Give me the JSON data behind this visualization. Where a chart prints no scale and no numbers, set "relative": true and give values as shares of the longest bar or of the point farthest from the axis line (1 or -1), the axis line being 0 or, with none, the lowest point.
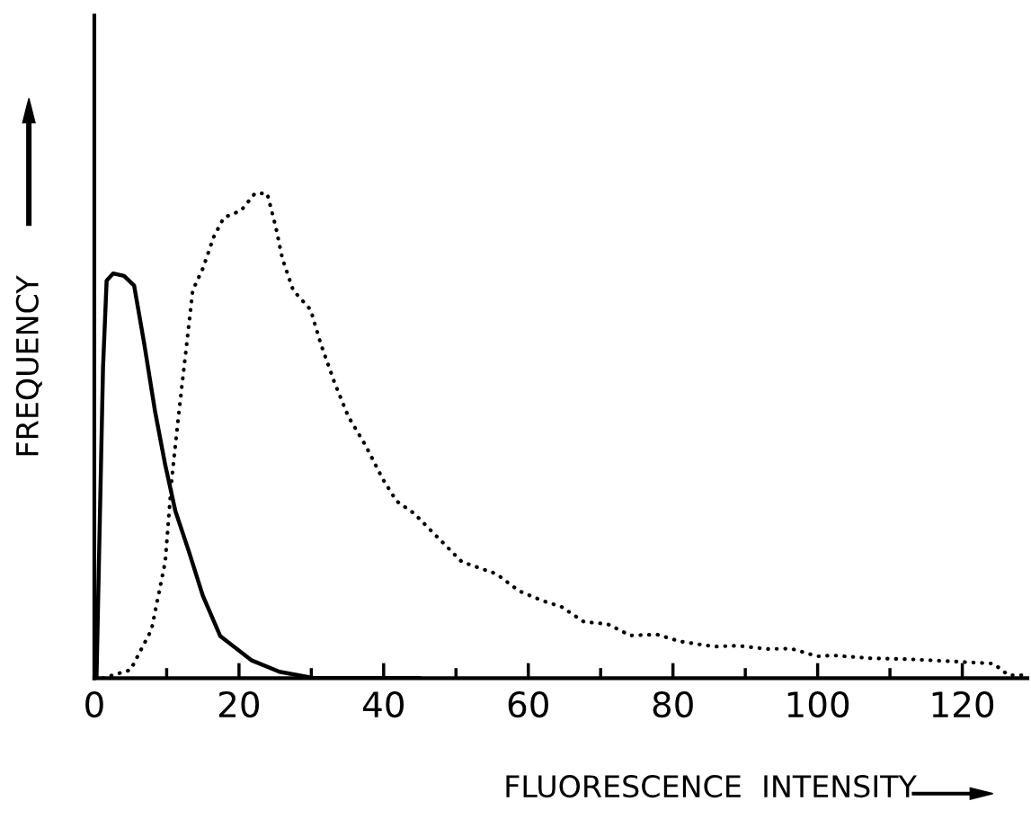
{
  "chart_data": {
    "type": "line",
    "relative": true,
    "xlabel": "FLUORESCENCE  INTENSITY",
    "ylabel": "FREQUENCY",
    "xlim": [
      0,
      129
    ],
    "xticks": [
      0,
      {
        "value": 10,
        "label": null
      },
      20,
      {
        "value": 30,
        "label": null
      },
      40,
      {
        "value": 50,
        "label": null
      },
      60,
      {
        "value": 70,
        "label": null
      },
      80,
      {
        "value": 90,
        "label": null
      },
      100,
      {
        "value": 110,
        "label": null
      },
      120
    ],
    "marker": "none",
    "series": [
      {
        "color": "#000000",
        "line_style": "solid",
        "x": [
          0.3,
          1.2,
          1.7,
          2.6,
          4.1,
          5.5,
          6.9,
          8.4,
          9.8,
          11.2,
          13.1,
          15.0,
          17.4,
          21.7,
          25.6,
          30.3,
          45.0
        ],
        "values": [
          0,
          0.64,
          0.82,
          0.835,
          0.83,
          0.81,
          0.69,
          0.55,
          0.44,
          0.345,
          0.26,
          0.17,
          0.087,
          0.037,
          0.013,
          0,
          0
        ]
      },
      {
        "color": "#000000",
        "line_style": "dotted",
        "x": [
          1.2,
          5.0,
          7.9,
          9.8,
          10.7,
          11.7,
          12.7,
          13.6,
          15.0,
          16.5,
          17.9,
          20.3,
          22.2,
          23.9,
          25.1,
          26.0,
          27.5,
          29.9,
          31.3,
          33.2,
          35.1,
          37.5,
          39.9,
          41.8,
          44.2,
          47.5,
          50.8,
          55.6,
          58.7,
          61.9,
          64.6,
          67.7,
          70.9,
          74.1,
          77.8,
          80.9,
          85.7,
          88.9,
          93.1,
          96.3,
          100.0,
          102.1,
          107.3,
          112.7,
          118.0,
          124.3,
          126.4,
          129
        ],
        "values": [
          0,
          0.017,
          0.1,
          0.24,
          0.41,
          0.55,
          0.68,
          0.8,
          0.845,
          0.91,
          0.95,
          0.965,
          1.0,
          1.0,
          0.93,
          0.865,
          0.8,
          0.76,
          0.69,
          0.61,
          0.54,
          0.48,
          0.41,
          0.365,
          0.34,
          0.29,
          0.24,
          0.215,
          0.18,
          0.16,
          0.147,
          0.116,
          0.112,
          0.088,
          0.09,
          0.076,
          0.065,
          0.067,
          0.06,
          0.061,
          0.045,
          0.047,
          0.041,
          0.039,
          0.035,
          0.03,
          0.006,
          0.006
        ]
      }
    ]
  }
}
